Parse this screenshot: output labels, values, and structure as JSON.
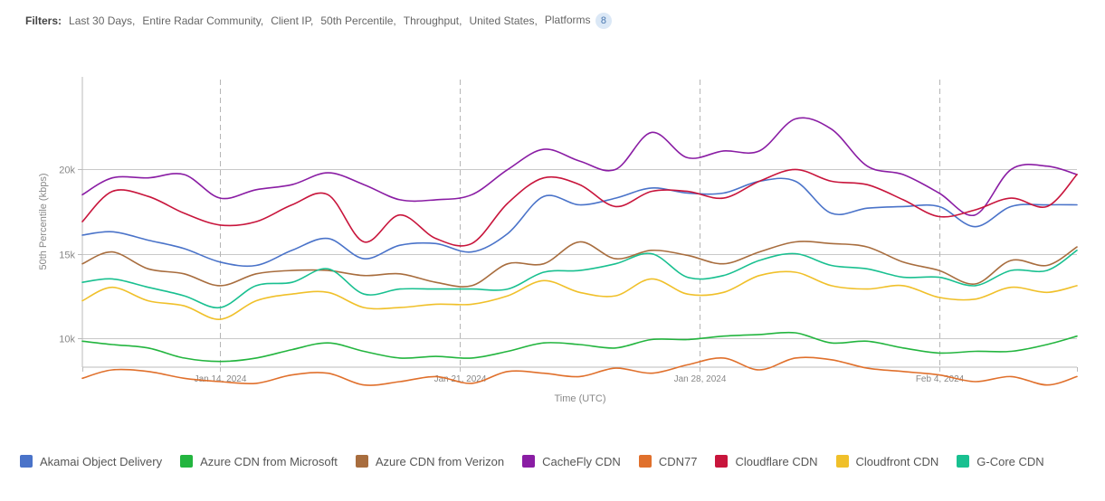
{
  "filters": {
    "label": "Filters:",
    "items": [
      "Last 30 Days,",
      "Entire Radar Community,",
      "Client IP,",
      "50th Percentile,",
      "Throughput,",
      "United States,",
      "Platforms"
    ],
    "platforms_count": "8"
  },
  "chart_data": {
    "type": "line",
    "xlabel": "Time (UTC)",
    "ylabel": "50th Percentile (kbps)",
    "ylim": [
      8260,
      25500
    ],
    "yticks": [
      {
        "value": 10000,
        "label": "10k"
      },
      {
        "value": 15000,
        "label": "15k"
      },
      {
        "value": 20000,
        "label": "20k"
      }
    ],
    "xlim": [
      0,
      41.5
    ],
    "xticks": [
      {
        "value": 5.75,
        "label": "Jan 14, 2024"
      },
      {
        "value": 15.75,
        "label": "Jan 21, 2024"
      },
      {
        "value": 25.75,
        "label": "Jan 28, 2024"
      },
      {
        "value": 35.75,
        "label": "Feb 4, 2024"
      }
    ],
    "x": [
      0,
      1.25,
      2.75,
      4.25,
      5.75,
      7.25,
      8.75,
      10.25,
      11.75,
      13.25,
      14.75,
      16.25,
      17.75,
      19.25,
      20.75,
      22.25,
      23.75,
      25.25,
      26.75,
      28.25,
      29.75,
      31.25,
      32.75,
      34.25,
      35.75,
      37.25,
      38.75,
      40.25,
      41.5
    ],
    "series": [
      {
        "name": "Akamai Object Delivery",
        "color": "#4a73c9",
        "values": [
          16100,
          16300,
          15800,
          15300,
          14500,
          14300,
          15200,
          15900,
          14700,
          15500,
          15600,
          15100,
          16200,
          18400,
          17900,
          18300,
          18900,
          18600,
          18600,
          19300,
          19300,
          17400,
          17700,
          17800,
          17800,
          16600,
          17800,
          17900,
          17900
        ]
      },
      {
        "name": "Azure CDN from Microsoft",
        "color": "#23b53f",
        "values": [
          9800,
          9600,
          9400,
          8800,
          8600,
          8800,
          9300,
          9700,
          9200,
          8800,
          8900,
          8800,
          9200,
          9700,
          9600,
          9400,
          9900,
          9900,
          10100,
          10200,
          10300,
          9700,
          9800,
          9400,
          9100,
          9200,
          9200,
          9600,
          10100
        ]
      },
      {
        "name": "Azure CDN from Verizon",
        "color": "#a86d3e",
        "values": [
          14400,
          15100,
          14100,
          13800,
          13100,
          13800,
          14000,
          14000,
          13700,
          13800,
          13300,
          13100,
          14400,
          14400,
          15700,
          14700,
          15200,
          14900,
          14400,
          15100,
          15700,
          15600,
          15400,
          14500,
          14000,
          13200,
          14600,
          14300,
          15400
        ]
      },
      {
        "name": "CacheFly CDN",
        "color": "#8a1da4",
        "values": [
          18500,
          19500,
          19500,
          19700,
          18300,
          18800,
          19100,
          19800,
          19100,
          18200,
          18200,
          18500,
          20000,
          21200,
          20500,
          20000,
          22200,
          20700,
          21100,
          21100,
          23000,
          22400,
          20200,
          19700,
          18600,
          17300,
          20000,
          20200,
          19700
        ]
      },
      {
        "name": "CDN77",
        "color": "#e0702c",
        "values": [
          7600,
          8100,
          8000,
          7600,
          7400,
          7300,
          7800,
          7900,
          7200,
          7400,
          7700,
          7300,
          8000,
          7900,
          7700,
          8200,
          7900,
          8400,
          8800,
          8100,
          8800,
          8700,
          8200,
          8000,
          7800,
          7400,
          7700,
          7200,
          7700
        ]
      },
      {
        "name": "Cloudflare CDN",
        "color": "#c8153c",
        "values": [
          16900,
          18700,
          18400,
          17400,
          16700,
          16900,
          17900,
          18500,
          15700,
          17300,
          15900,
          15600,
          18000,
          19500,
          19100,
          17800,
          18700,
          18700,
          18300,
          19300,
          20000,
          19300,
          19100,
          18200,
          17200,
          17600,
          18300,
          17800,
          19700
        ]
      },
      {
        "name": "Cloudfront CDN",
        "color": "#f0c02a",
        "values": [
          12200,
          13000,
          12200,
          11900,
          11100,
          12200,
          12600,
          12700,
          11800,
          11800,
          12000,
          12000,
          12500,
          13400,
          12700,
          12500,
          13500,
          12600,
          12700,
          13700,
          13900,
          13100,
          12900,
          13100,
          12400,
          12300,
          13000,
          12700,
          13100
        ]
      },
      {
        "name": "G-Core CDN",
        "color": "#19c090",
        "values": [
          13300,
          13500,
          13000,
          12500,
          11800,
          13100,
          13300,
          14100,
          12600,
          12900,
          12900,
          12900,
          12900,
          13900,
          14000,
          14400,
          15000,
          13600,
          13700,
          14600,
          15000,
          14300,
          14100,
          13600,
          13600,
          13100,
          14000,
          14000,
          15200
        ]
      }
    ]
  }
}
